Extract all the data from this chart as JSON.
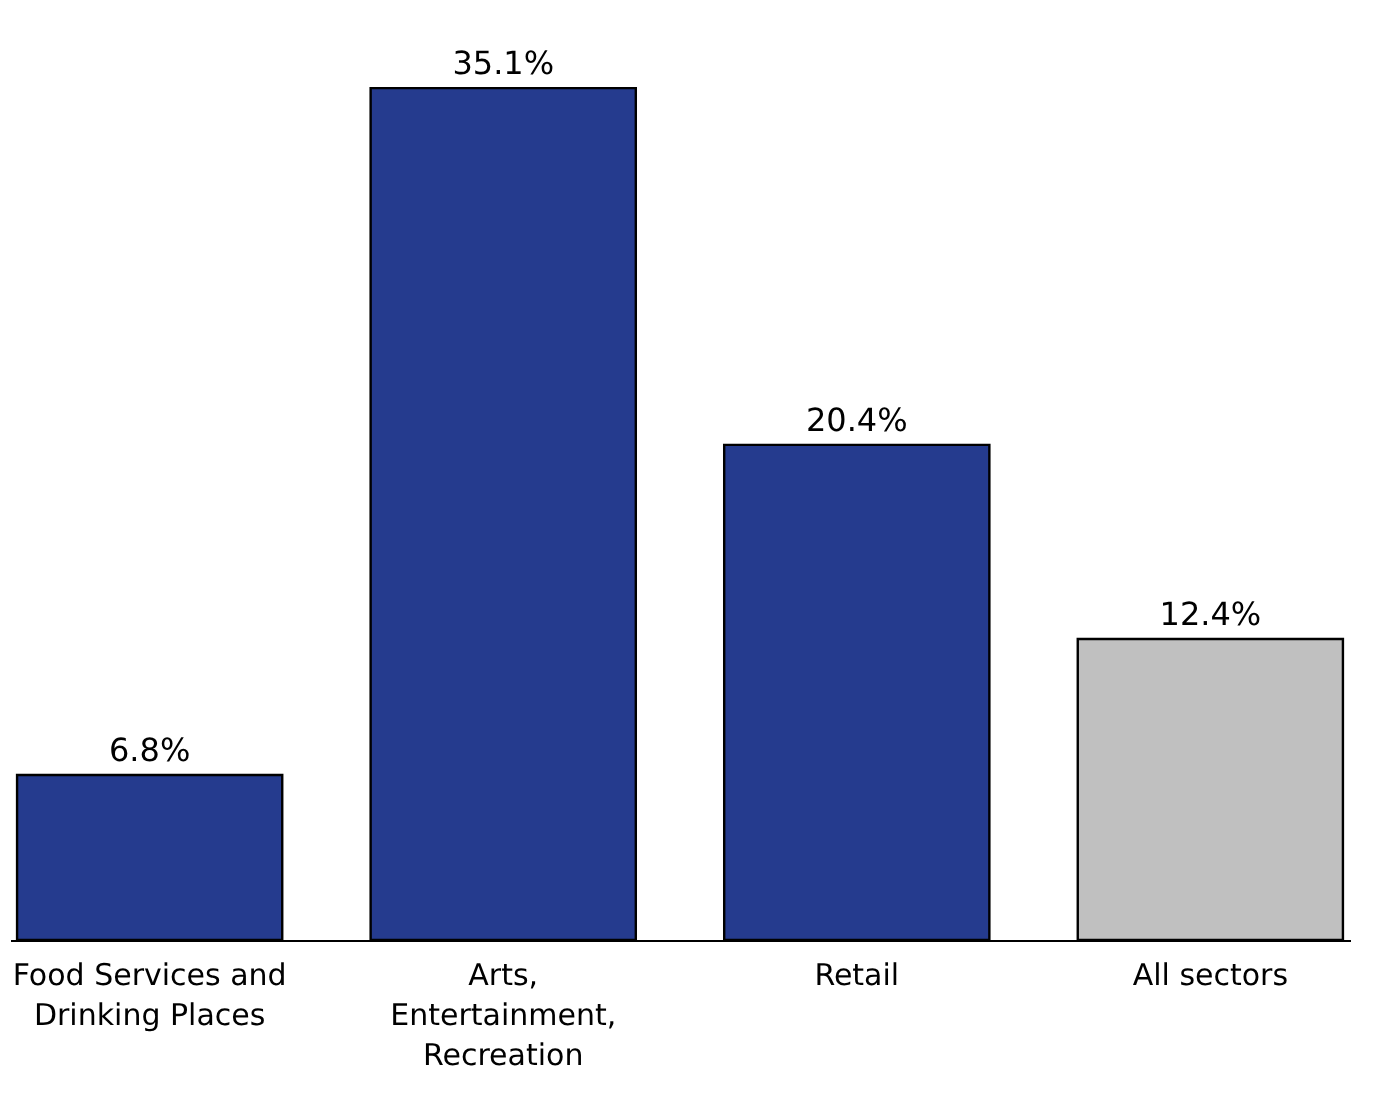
{
  "chart_data": {
    "type": "bar",
    "categories": [
      "Food Services and Drinking Places",
      "Arts, Entertainment, Recreation",
      "Retail",
      "All sectors"
    ],
    "values": [
      6.8,
      35.1,
      20.4,
      12.4
    ],
    "colors": [
      "#253b8e",
      "#253b8e",
      "#253b8e",
      "#c0c0c0"
    ],
    "value_labels": [
      "6.8%",
      "35.1%",
      "20.4%",
      "12.4%"
    ]
  }
}
